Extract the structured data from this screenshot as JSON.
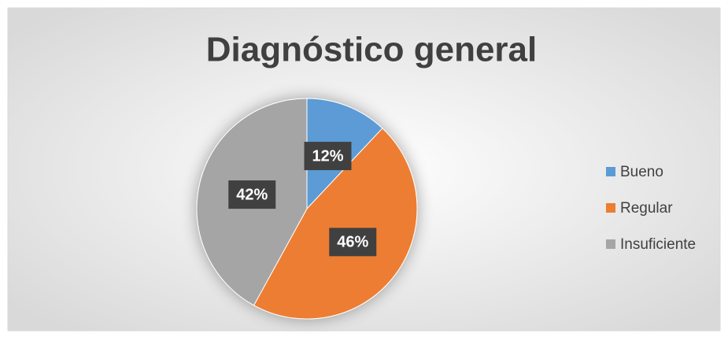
{
  "chart_data": {
    "type": "pie",
    "title": "Diagnóstico general",
    "categories": [
      "Bueno",
      "Regular",
      "Insuficiente"
    ],
    "values": [
      12,
      46,
      42
    ],
    "value_labels": [
      "12%",
      "46%",
      "42%"
    ],
    "colors": [
      "#5b9bd5",
      "#ed7d31",
      "#a5a5a5"
    ],
    "legend": "right"
  }
}
